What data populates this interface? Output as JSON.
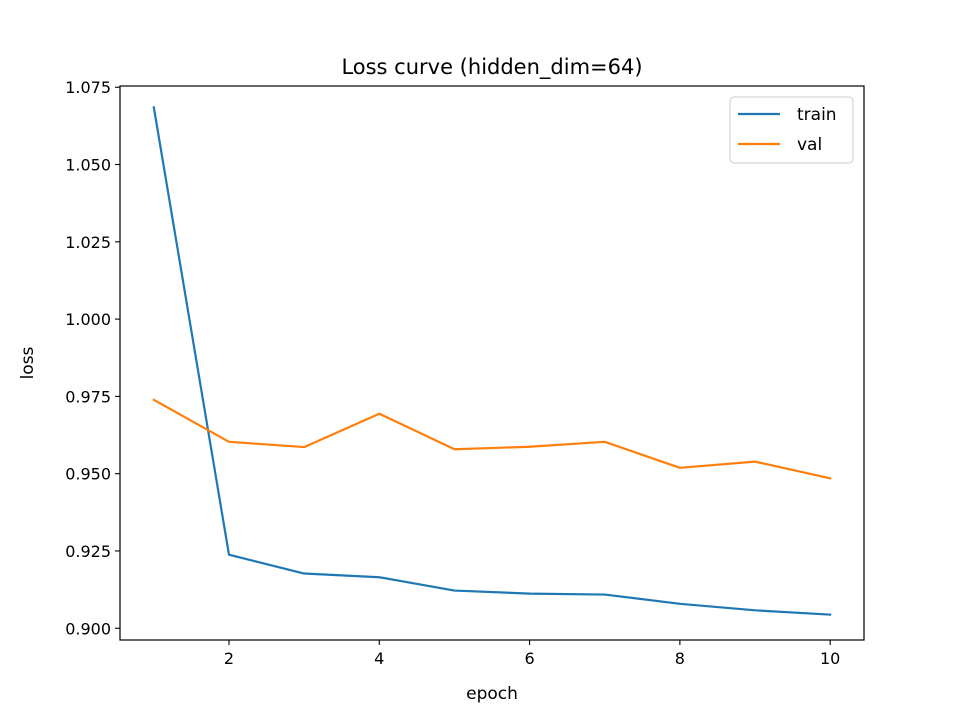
{
  "chart_data": {
    "type": "line",
    "title": "Loss curve (hidden_dim=64)",
    "xlabel": "epoch",
    "ylabel": "loss",
    "x": [
      1,
      2,
      3,
      4,
      5,
      6,
      7,
      8,
      9,
      10
    ],
    "xlim": [
      0.55,
      10.45
    ],
    "ylim": [
      0.8962,
      1.0754
    ],
    "xticks": [
      2,
      4,
      6,
      8,
      10
    ],
    "yticks": [
      0.9,
      0.925,
      0.95,
      0.975,
      1.0,
      1.025,
      1.05,
      1.075
    ],
    "xtick_labels": [
      "2",
      "4",
      "6",
      "8",
      "10"
    ],
    "ytick_labels": [
      "0.900",
      "0.925",
      "0.950",
      "0.975",
      "1.000",
      "1.025",
      "1.050",
      "1.075"
    ],
    "grid": false,
    "legend_position": "top-right",
    "series": [
      {
        "name": "train",
        "color": "#1f77b4",
        "values": [
          1.0685,
          0.9238,
          0.9177,
          0.9165,
          0.9122,
          0.9112,
          0.9109,
          0.9079,
          0.9058,
          0.9044
        ]
      },
      {
        "name": "val",
        "color": "#ff7f0e",
        "values": [
          0.9739,
          0.9603,
          0.9586,
          0.9694,
          0.9579,
          0.9587,
          0.9603,
          0.9519,
          0.9539,
          0.9485
        ]
      }
    ]
  }
}
